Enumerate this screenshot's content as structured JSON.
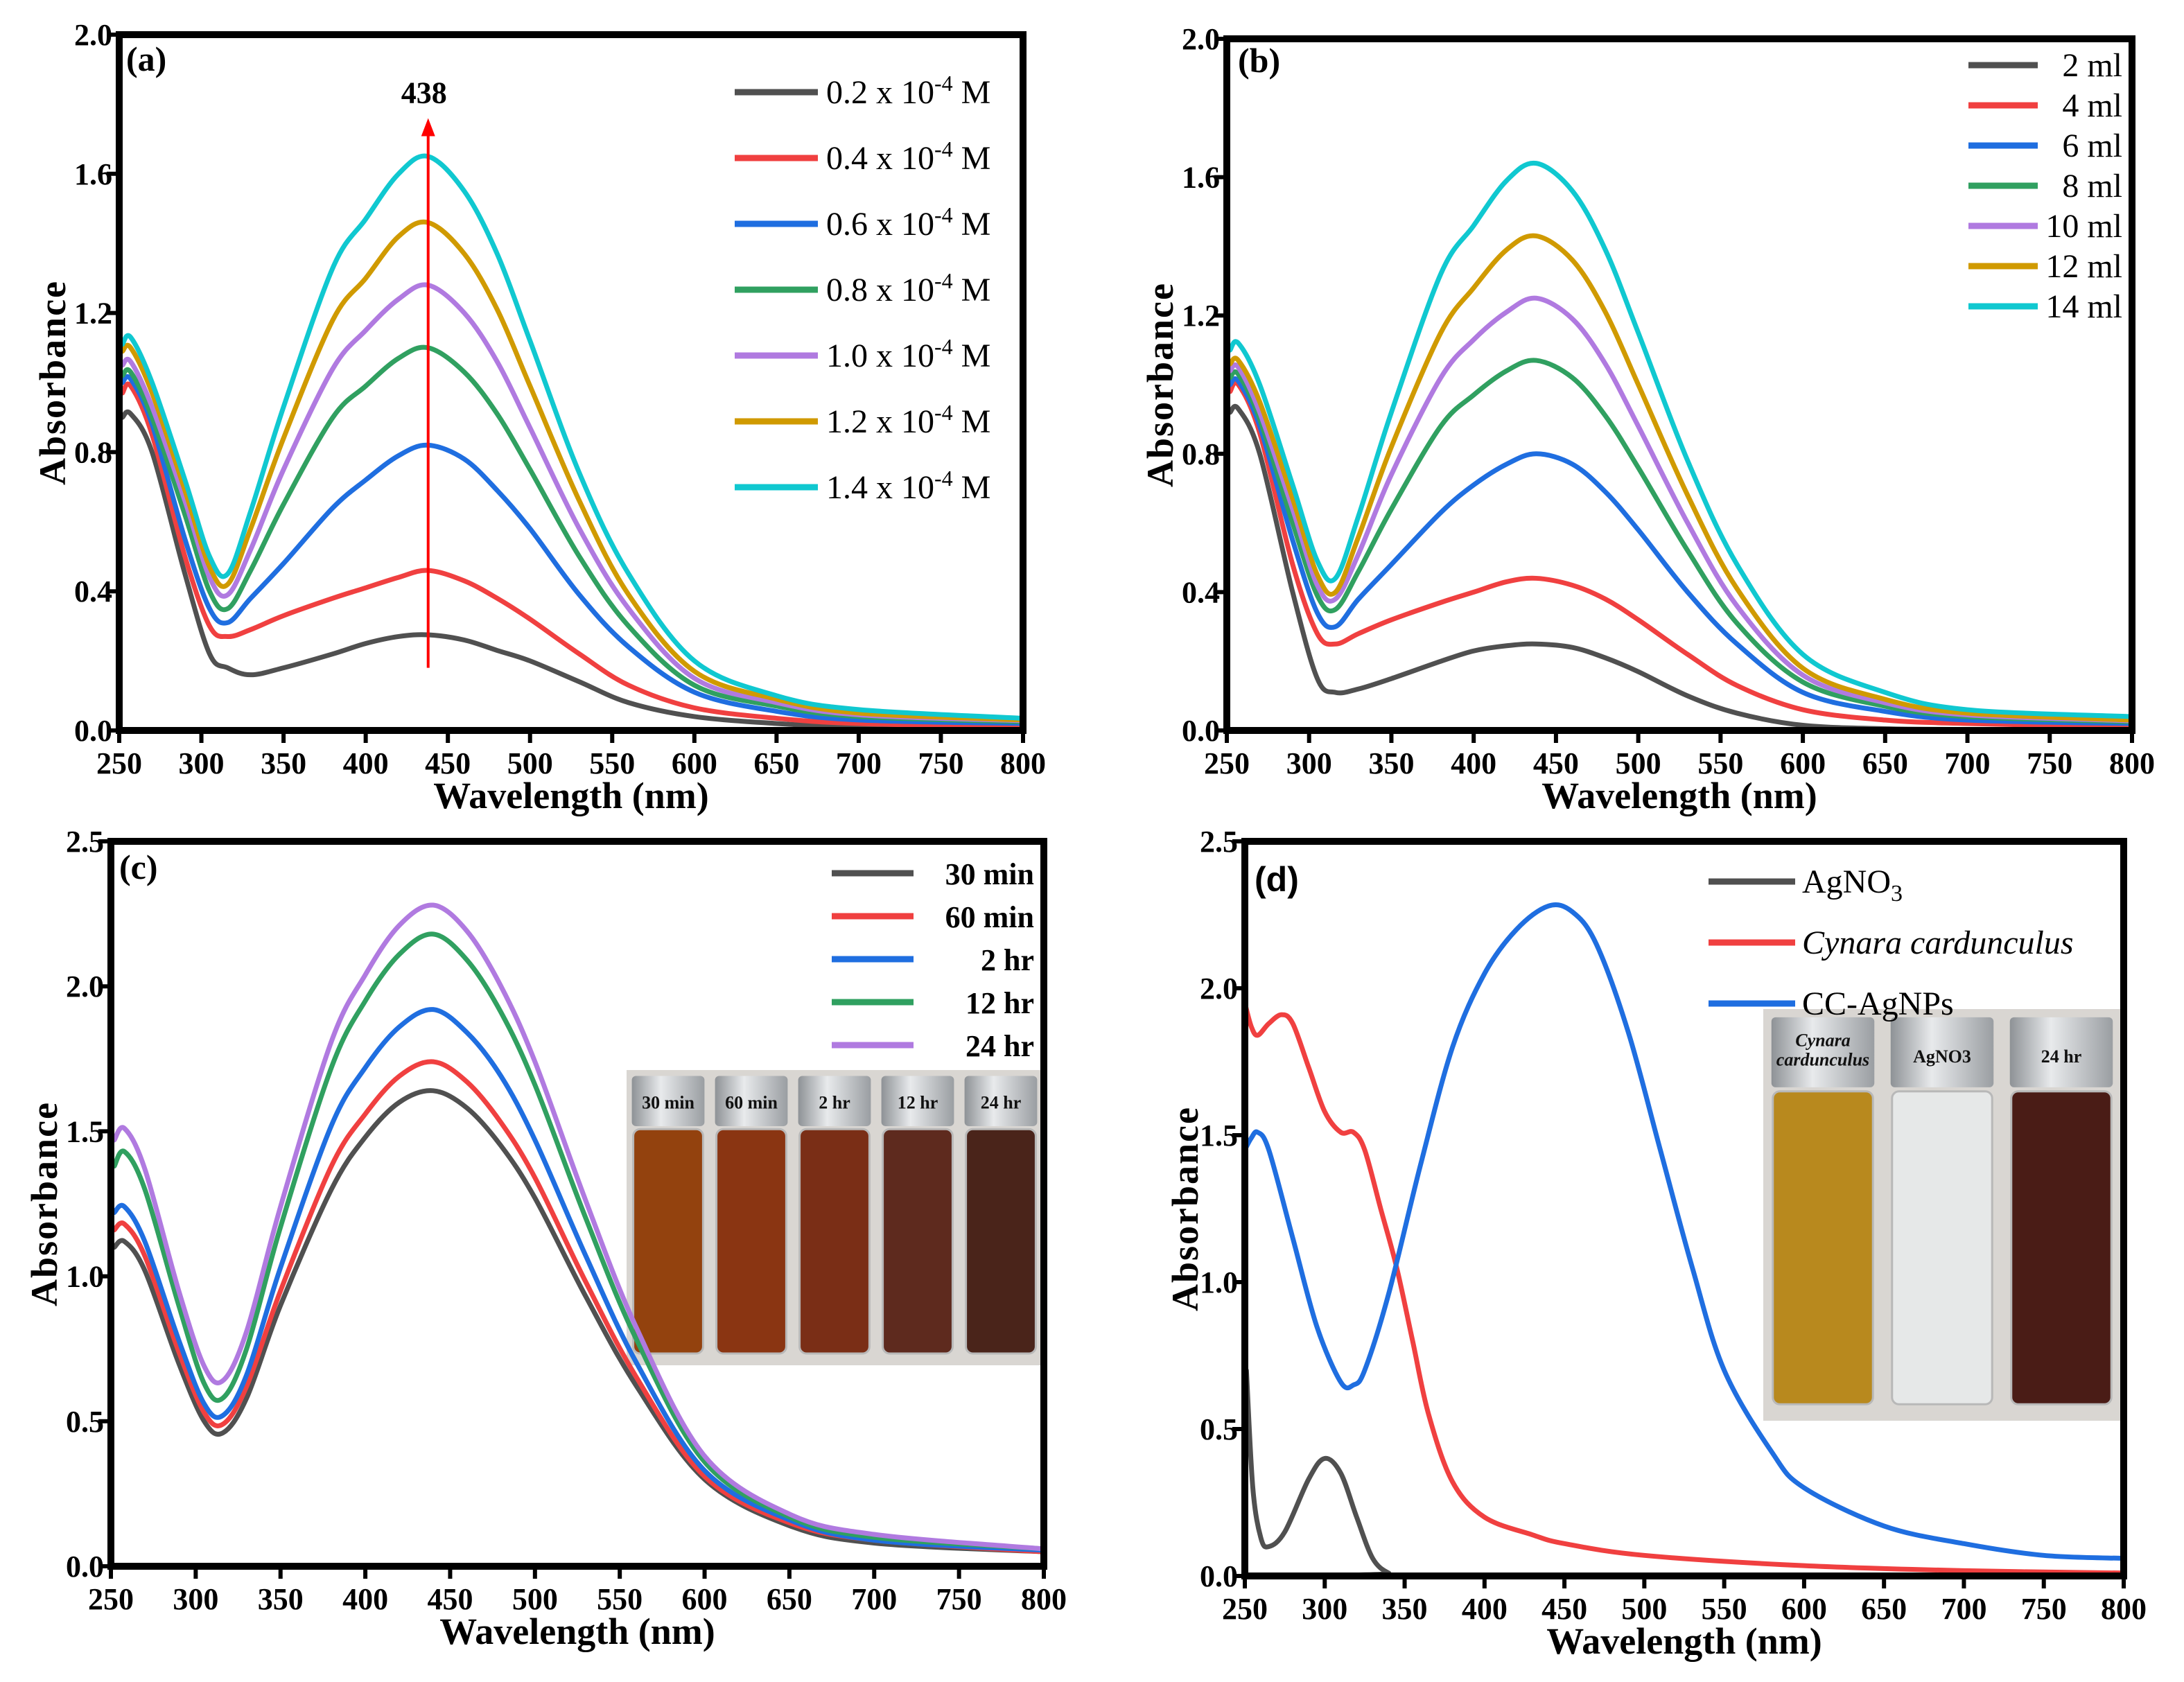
{
  "chart_data": [
    {
      "panel_label": "(a)",
      "type": "line",
      "xlabel": "Wavelength (nm)",
      "ylabel": "Absorbance",
      "xlim": [
        250,
        800
      ],
      "ylim": [
        0,
        2.0
      ],
      "xticks": [
        "250",
        "300",
        "350",
        "400",
        "450",
        "500",
        "550",
        "600",
        "650",
        "700",
        "750",
        "800"
      ],
      "yticks": [
        "0.0",
        "0.4",
        "0.8",
        "1.2",
        "1.6",
        "2.0"
      ],
      "legend_position": "top-right",
      "annotation": {
        "text": "438",
        "x": 438,
        "y_from": 0.18,
        "y_to": 1.76,
        "color": "#ff0000"
      },
      "x": [
        252,
        257,
        270,
        290,
        305,
        316,
        330,
        350,
        380,
        400,
        420,
        438,
        460,
        480,
        500,
        530,
        560,
        600,
        650,
        700,
        800
      ],
      "series": [
        {
          "name": {
            "text": "0.2 x 10",
            "sup": "-4",
            "suffix": " M"
          },
          "color": "#505050",
          "values": [
            0.9,
            0.91,
            0.8,
            0.45,
            0.22,
            0.18,
            0.16,
            0.18,
            0.22,
            0.25,
            0.27,
            0.275,
            0.26,
            0.23,
            0.2,
            0.14,
            0.08,
            0.04,
            0.02,
            0.01,
            0.005
          ]
        },
        {
          "name": {
            "text": "0.4 x 10",
            "sup": "-4",
            "suffix": " M"
          },
          "color": "#f04040",
          "values": [
            0.97,
            0.99,
            0.85,
            0.5,
            0.3,
            0.27,
            0.29,
            0.33,
            0.38,
            0.41,
            0.44,
            0.46,
            0.43,
            0.38,
            0.32,
            0.22,
            0.13,
            0.065,
            0.035,
            0.02,
            0.01
          ]
        },
        {
          "name": {
            "text": "0.6 x 10",
            "sup": "-4",
            "suffix": " M"
          },
          "color": "#1f6ee0",
          "values": [
            1.0,
            1.01,
            0.88,
            0.55,
            0.35,
            0.31,
            0.38,
            0.48,
            0.64,
            0.72,
            0.79,
            0.82,
            0.78,
            0.69,
            0.58,
            0.39,
            0.24,
            0.11,
            0.055,
            0.03,
            0.02
          ]
        },
        {
          "name": {
            "text": "0.8 x 10",
            "sup": "-4",
            "suffix": " M"
          },
          "color": "#30a060",
          "values": [
            1.02,
            1.03,
            0.9,
            0.62,
            0.4,
            0.35,
            0.46,
            0.65,
            0.9,
            0.99,
            1.07,
            1.1,
            1.03,
            0.91,
            0.75,
            0.5,
            0.3,
            0.13,
            0.07,
            0.04,
            0.025
          ]
        },
        {
          "name": {
            "text": "1.0 x 10",
            "sup": "-4",
            "suffix": " M"
          },
          "color": "#b07ae0",
          "values": [
            1.05,
            1.06,
            0.93,
            0.66,
            0.44,
            0.39,
            0.52,
            0.75,
            1.04,
            1.15,
            1.24,
            1.28,
            1.2,
            1.06,
            0.87,
            0.58,
            0.35,
            0.15,
            0.08,
            0.045,
            0.028
          ]
        },
        {
          "name": {
            "text": "1.2 x 10",
            "sup": "-4",
            "suffix": " M"
          },
          "color": "#d09a00",
          "values": [
            1.09,
            1.1,
            0.97,
            0.69,
            0.47,
            0.42,
            0.58,
            0.84,
            1.18,
            1.3,
            1.42,
            1.46,
            1.37,
            1.21,
            0.99,
            0.66,
            0.39,
            0.17,
            0.09,
            0.05,
            0.03
          ]
        },
        {
          "name": {
            "text": "1.4 x 10",
            "sup": "-4",
            "suffix": " M"
          },
          "color": "#10c8d0",
          "values": [
            1.11,
            1.13,
            1.0,
            0.72,
            0.5,
            0.45,
            0.63,
            0.93,
            1.33,
            1.47,
            1.6,
            1.65,
            1.55,
            1.37,
            1.12,
            0.74,
            0.45,
            0.2,
            0.1,
            0.06,
            0.035
          ]
        }
      ]
    },
    {
      "panel_label": "(b)",
      "type": "line",
      "xlabel": "Wavelength (nm)",
      "ylabel": "Absorbance",
      "xlim": [
        250,
        800
      ],
      "ylim": [
        0,
        2.0
      ],
      "xticks": [
        "250",
        "300",
        "350",
        "400",
        "450",
        "500",
        "550",
        "600",
        "650",
        "700",
        "750",
        "800"
      ],
      "yticks": [
        "0.0",
        "0.4",
        "0.8",
        "1.2",
        "1.6",
        "2.0"
      ],
      "legend_position": "top-right",
      "x": [
        252,
        257,
        270,
        290,
        305,
        316,
        330,
        350,
        380,
        400,
        420,
        438,
        460,
        480,
        500,
        530,
        560,
        600,
        650,
        700,
        800
      ],
      "series": [
        {
          "name": {
            "text": "2 ml"
          },
          "color": "#505050",
          "values": [
            0.92,
            0.93,
            0.8,
            0.4,
            0.15,
            0.11,
            0.12,
            0.15,
            0.2,
            0.23,
            0.245,
            0.25,
            0.24,
            0.21,
            0.17,
            0.1,
            0.05,
            0.015,
            0.005,
            0.003,
            0.002
          ]
        },
        {
          "name": {
            "text": "4 ml"
          },
          "color": "#f04040",
          "values": [
            0.98,
            1.0,
            0.86,
            0.48,
            0.28,
            0.25,
            0.28,
            0.32,
            0.37,
            0.4,
            0.43,
            0.44,
            0.42,
            0.38,
            0.32,
            0.22,
            0.13,
            0.06,
            0.03,
            0.02,
            0.01
          ]
        },
        {
          "name": {
            "text": "6 ml"
          },
          "color": "#1f6ee0",
          "values": [
            1.0,
            1.01,
            0.88,
            0.55,
            0.34,
            0.3,
            0.38,
            0.48,
            0.63,
            0.71,
            0.77,
            0.8,
            0.77,
            0.69,
            0.58,
            0.4,
            0.25,
            0.11,
            0.055,
            0.03,
            0.02
          ]
        },
        {
          "name": {
            "text": "8 ml"
          },
          "color": "#30a060",
          "values": [
            1.02,
            1.03,
            0.9,
            0.6,
            0.39,
            0.35,
            0.46,
            0.64,
            0.88,
            0.97,
            1.04,
            1.07,
            1.02,
            0.91,
            0.76,
            0.52,
            0.31,
            0.14,
            0.07,
            0.04,
            0.025
          ]
        },
        {
          "name": {
            "text": "10 ml"
          },
          "color": "#b07ae0",
          "values": [
            1.04,
            1.05,
            0.92,
            0.64,
            0.42,
            0.38,
            0.51,
            0.74,
            1.02,
            1.13,
            1.21,
            1.25,
            1.19,
            1.06,
            0.88,
            0.6,
            0.36,
            0.16,
            0.08,
            0.045,
            0.028
          ]
        },
        {
          "name": {
            "text": "12 ml"
          },
          "color": "#d09a00",
          "values": [
            1.06,
            1.07,
            0.95,
            0.67,
            0.45,
            0.4,
            0.56,
            0.82,
            1.15,
            1.28,
            1.39,
            1.43,
            1.36,
            1.21,
            1.0,
            0.68,
            0.41,
            0.18,
            0.09,
            0.05,
            0.03
          ]
        },
        {
          "name": {
            "text": "14 ml"
          },
          "color": "#10c8d0",
          "values": [
            1.1,
            1.12,
            1.0,
            0.71,
            0.49,
            0.44,
            0.62,
            0.92,
            1.32,
            1.46,
            1.59,
            1.64,
            1.56,
            1.39,
            1.15,
            0.78,
            0.48,
            0.22,
            0.11,
            0.06,
            0.04
          ]
        }
      ]
    },
    {
      "panel_label": "(c)",
      "type": "line",
      "xlabel": "Wavelength (nm)",
      "ylabel": "Absorbance",
      "xlim": [
        250,
        800
      ],
      "ylim": [
        0,
        2.5
      ],
      "xticks": [
        "250",
        "300",
        "350",
        "400",
        "450",
        "500",
        "550",
        "600",
        "650",
        "700",
        "750",
        "800"
      ],
      "yticks": [
        "0.0",
        "0.5",
        "1.0",
        "1.5",
        "2.0",
        "2.5"
      ],
      "legend_position": "top-right",
      "x": [
        252,
        258,
        270,
        290,
        305,
        316,
        330,
        350,
        380,
        400,
        420,
        440,
        460,
        480,
        500,
        530,
        560,
        600,
        650,
        700,
        800
      ],
      "series": [
        {
          "name": {
            "text": "30 min"
          },
          "color": "#505050",
          "values": [
            1.1,
            1.12,
            1.02,
            0.7,
            0.5,
            0.46,
            0.58,
            0.9,
            1.3,
            1.48,
            1.6,
            1.64,
            1.58,
            1.45,
            1.27,
            0.93,
            0.62,
            0.3,
            0.14,
            0.08,
            0.05
          ]
        },
        {
          "name": {
            "text": "60 min"
          },
          "color": "#f04040",
          "values": [
            1.16,
            1.18,
            1.07,
            0.74,
            0.53,
            0.49,
            0.62,
            0.95,
            1.38,
            1.56,
            1.69,
            1.74,
            1.67,
            1.53,
            1.34,
            0.98,
            0.65,
            0.31,
            0.15,
            0.09,
            0.05
          ]
        },
        {
          "name": {
            "text": "2 hr"
          },
          "color": "#1f6ee0",
          "values": [
            1.22,
            1.24,
            1.12,
            0.78,
            0.56,
            0.52,
            0.66,
            1.03,
            1.52,
            1.72,
            1.86,
            1.92,
            1.84,
            1.69,
            1.47,
            1.07,
            0.7,
            0.33,
            0.16,
            0.09,
            0.055
          ]
        },
        {
          "name": {
            "text": "12 hr"
          },
          "color": "#30a060",
          "values": [
            1.38,
            1.43,
            1.3,
            0.9,
            0.63,
            0.58,
            0.75,
            1.17,
            1.72,
            1.95,
            2.11,
            2.18,
            2.09,
            1.91,
            1.66,
            1.2,
            0.78,
            0.36,
            0.17,
            0.1,
            0.06
          ]
        },
        {
          "name": {
            "text": "24 hr"
          },
          "color": "#b07ae0",
          "values": [
            1.47,
            1.51,
            1.37,
            0.95,
            0.69,
            0.64,
            0.81,
            1.24,
            1.81,
            2.04,
            2.21,
            2.28,
            2.19,
            2.0,
            1.74,
            1.26,
            0.82,
            0.38,
            0.18,
            0.11,
            0.06
          ]
        }
      ],
      "inset": {
        "vials": [
          {
            "label": "30 min",
            "color": "#93420e"
          },
          {
            "label": "60 min",
            "color": "#8a3512"
          },
          {
            "label": "2 hr",
            "color": "#7a2e16"
          },
          {
            "label": "12 hr",
            "color": "#5e2a1e"
          },
          {
            "label": "24 hr",
            "color": "#4a241a"
          }
        ]
      }
    },
    {
      "panel_label": "(d)",
      "type": "line",
      "xlabel": "Wavelength (nm)",
      "ylabel": "Absorbance",
      "xlim": [
        250,
        800
      ],
      "ylim": [
        0,
        2.5
      ],
      "xticks": [
        "250",
        "300",
        "350",
        "400",
        "450",
        "500",
        "550",
        "600",
        "650",
        "700",
        "750",
        "800"
      ],
      "yticks": [
        "0.0",
        "0.5",
        "1.0",
        "1.5",
        "2.0",
        "2.5"
      ],
      "legend_position": "top-right",
      "series": [
        {
          "name": {
            "text": "AgNO",
            "sub": "3"
          },
          "color": "#505050",
          "x": [
            251,
            255,
            260,
            265,
            275,
            290,
            300,
            310,
            320,
            330,
            340,
            350,
            800
          ],
          "values": [
            0.7,
            0.3,
            0.13,
            0.1,
            0.15,
            0.33,
            0.4,
            0.35,
            0.2,
            0.06,
            0.01,
            0.003,
            0.003
          ]
        },
        {
          "name": {
            "text": "Cynara cardunculus",
            "italic": true
          },
          "color": "#f04040",
          "x": [
            250,
            254,
            258,
            265,
            273,
            280,
            290,
            300,
            310,
            318,
            325,
            335,
            345,
            355,
            365,
            380,
            400,
            430,
            450,
            500,
            600,
            700,
            800
          ],
          "values": [
            1.95,
            1.87,
            1.84,
            1.88,
            1.91,
            1.88,
            1.73,
            1.58,
            1.51,
            1.51,
            1.45,
            1.25,
            1.05,
            0.8,
            0.55,
            0.32,
            0.2,
            0.14,
            0.11,
            0.07,
            0.035,
            0.018,
            0.01
          ]
        },
        {
          "name": {
            "text": "CC-AgNPs"
          },
          "color": "#1f6ee0",
          "x": [
            250,
            254,
            258,
            265,
            280,
            295,
            310,
            318,
            325,
            340,
            360,
            380,
            400,
            420,
            440,
            455,
            470,
            490,
            510,
            530,
            550,
            580,
            600,
            650,
            700,
            750,
            800
          ],
          "values": [
            1.45,
            1.49,
            1.51,
            1.45,
            1.15,
            0.85,
            0.66,
            0.65,
            0.7,
            0.96,
            1.4,
            1.8,
            2.05,
            2.2,
            2.28,
            2.26,
            2.15,
            1.85,
            1.45,
            1.05,
            0.7,
            0.42,
            0.3,
            0.17,
            0.11,
            0.07,
            0.06
          ]
        }
      ],
      "inset": {
        "vials": [
          {
            "label": "Cynara cardunculus",
            "color": "#b8891e"
          },
          {
            "label": "AgNO3",
            "color": "#e6e8e8"
          },
          {
            "label": "24 hr",
            "color": "#4a1c16"
          }
        ]
      }
    }
  ]
}
